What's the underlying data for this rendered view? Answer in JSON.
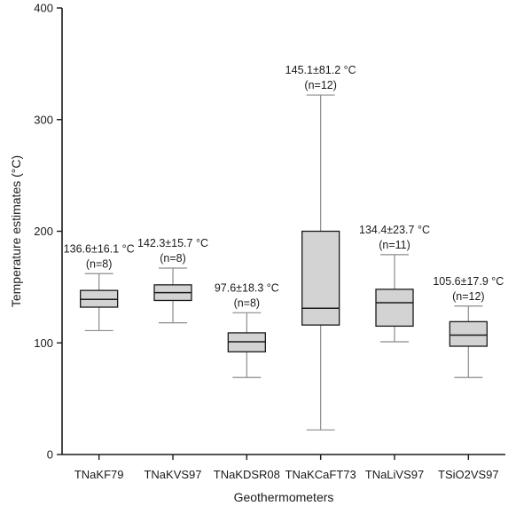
{
  "chart_data": {
    "type": "boxplot",
    "xlabel": "Geothermometers",
    "ylabel": "Temperature estimates (°C)",
    "ylim": [
      0,
      400
    ],
    "yticks": [
      0,
      100,
      200,
      300,
      400
    ],
    "categories": [
      "TNaKF79",
      "TNaKVS97",
      "TNaKDSR08",
      "TNaKCaFT73",
      "TNaLiVS97",
      "TSiO2VS97"
    ],
    "boxes": [
      {
        "name": "TNaKF79",
        "min": 111,
        "q1": 132,
        "median": 139,
        "q3": 147,
        "max": 162
      },
      {
        "name": "TNaKVS97",
        "min": 118,
        "q1": 138,
        "median": 145,
        "q3": 152,
        "max": 167
      },
      {
        "name": "TNaKDSR08",
        "min": 69,
        "q1": 92,
        "median": 101,
        "q3": 109,
        "max": 127
      },
      {
        "name": "TNaKCaFT73",
        "min": 22,
        "q1": 116,
        "median": 131,
        "q3": 200,
        "max": 322
      },
      {
        "name": "TNaLiVS97",
        "min": 101,
        "q1": 115,
        "median": 136,
        "q3": 148,
        "max": 179
      },
      {
        "name": "TSiO2VS97",
        "min": 69,
        "q1": 97,
        "median": 107,
        "q3": 119,
        "max": 133
      }
    ],
    "annotations": [
      {
        "category": "TNaKF79",
        "line1": "136.6±16.1 °C",
        "line2": "(n=8)"
      },
      {
        "category": "TNaKVS97",
        "line1": "142.3±15.7 °C",
        "line2": "(n=8)"
      },
      {
        "category": "TNaKDSR08",
        "line1": "97.6±18.3 °C",
        "line2": "(n=8)"
      },
      {
        "category": "TNaKCaFT73",
        "line1": "145.1±81.2 °C",
        "line2": "(n=12)"
      },
      {
        "category": "TNaLiVS97",
        "line1": "134.4±23.7 °C",
        "line2": "(n=11)"
      },
      {
        "category": "TSiO2VS97",
        "line1": "105.6±17.9 °C",
        "line2": "(n=12)"
      }
    ],
    "colors": {
      "box_fill": "#d3d3d3",
      "box_stroke": "#1a1a1a",
      "whisker": "#8c8c8c",
      "axis": "#1a1a1a"
    }
  }
}
